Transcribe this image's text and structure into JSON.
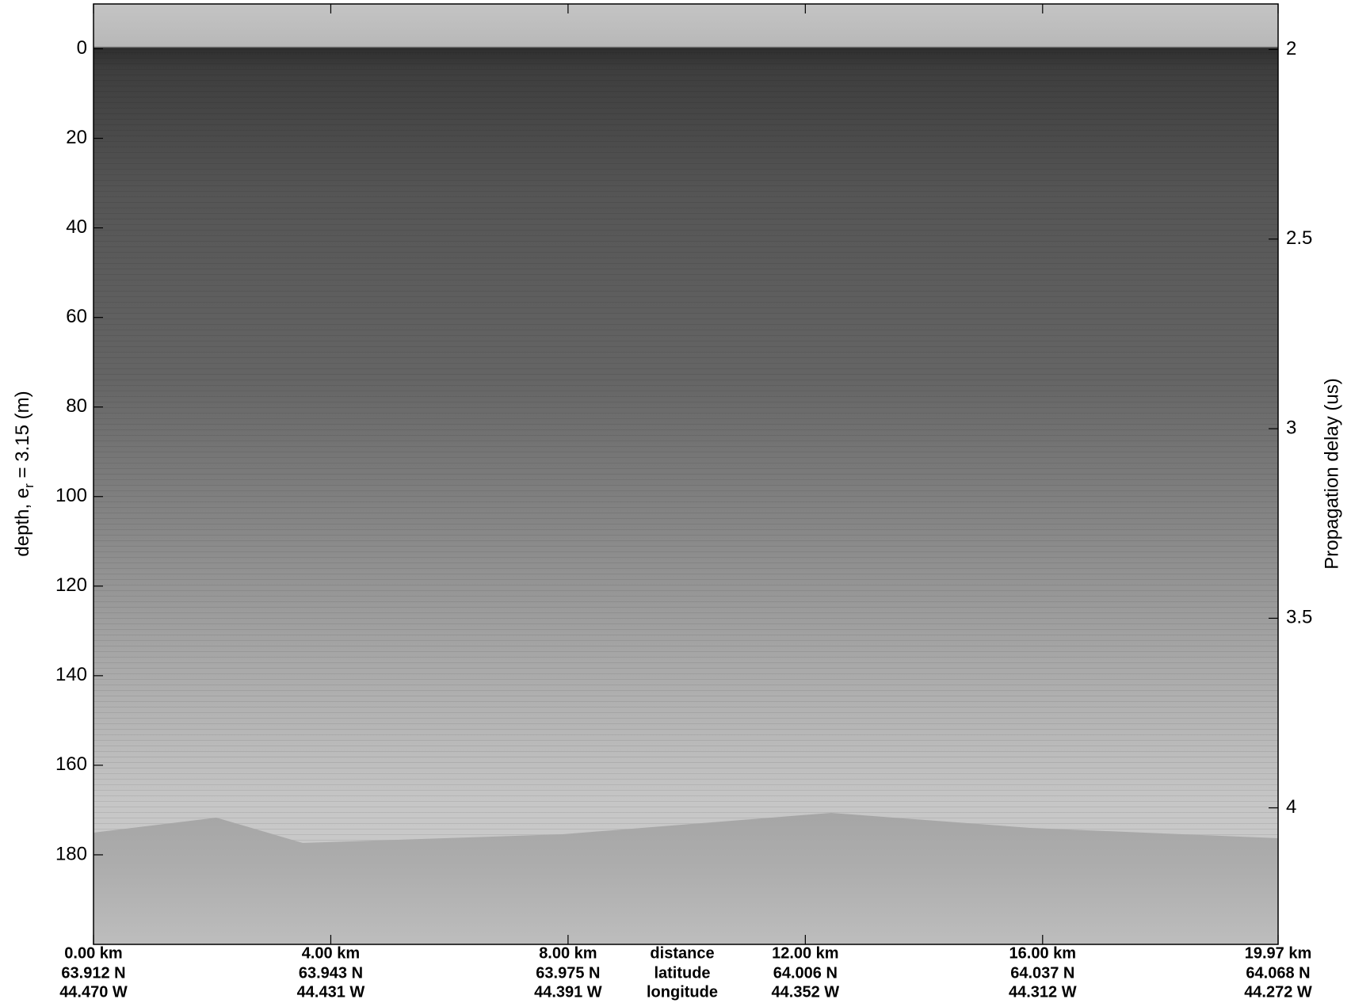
{
  "chart_data": {
    "type": "radargram",
    "ylabel": [
      "depth, e",
      "r",
      " = 3.15 (m)"
    ],
    "y2label": "Propagation delay (us)",
    "ylim": [
      -10,
      200
    ],
    "yticks": [
      0,
      20,
      40,
      60,
      80,
      100,
      120,
      140,
      160,
      180
    ],
    "y2lim": [
      1.88,
      4.36
    ],
    "y2ticks": [
      2,
      2.5,
      3,
      3.5,
      4
    ],
    "xlim": [
      0,
      19.97
    ],
    "xticks": [
      {
        "value": 0,
        "label": "0.00 km"
      },
      {
        "value": 4,
        "label": "4.00 km"
      },
      {
        "value": 8,
        "label": "8.00 km"
      },
      {
        "value": 12,
        "label": "12.00 km"
      },
      {
        "value": 16,
        "label": "16.00 km"
      },
      {
        "value": 19.97,
        "label": "19.97 km"
      }
    ],
    "latitude": [
      "63.912 N",
      "63.943 N",
      "63.975 N",
      "64.006 N",
      "64.037 N",
      "64.068 N"
    ],
    "longitude": [
      "44.470 W",
      "44.431 W",
      "44.391 W",
      "44.352 W",
      "44.312 W",
      "44.272 W"
    ],
    "x_row_labels": [
      "distance",
      "latitude",
      "longitude"
    ]
  }
}
